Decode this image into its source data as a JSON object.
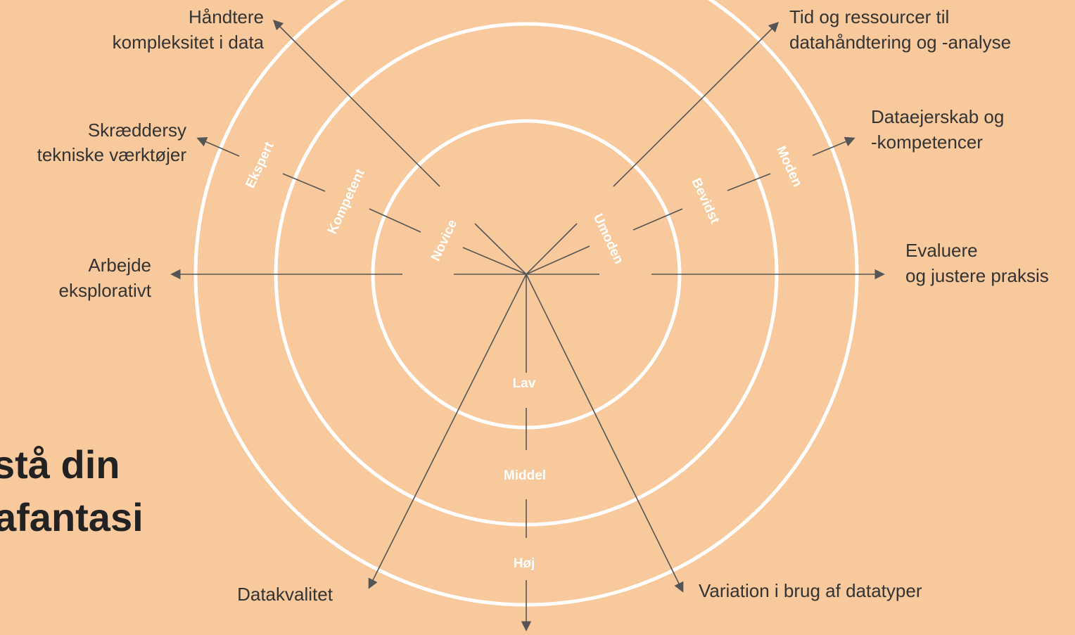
{
  "title": {
    "lines": [
      "stå din",
      "afantasi"
    ]
  },
  "axes": [
    {
      "lines": [
        "Håndtere",
        "kompleksitet i data"
      ]
    },
    {
      "lines": [
        "Skræddersy",
        "tekniske værktøjer"
      ]
    },
    {
      "lines": [
        "Arbejde",
        "eksplorativt"
      ]
    },
    {
      "lines": [
        "Tid og ressourcer til",
        "datahåndtering og -analyse"
      ]
    },
    {
      "lines": [
        "Dataejerskab og",
        "-kompetencer"
      ]
    },
    {
      "lines": [
        "Evaluere",
        "og justere praksis"
      ]
    },
    {
      "lines": [
        "Datakvalitet"
      ]
    },
    {
      "lines": [
        "Variation i brug af datatyper"
      ]
    }
  ],
  "rings": {
    "left": [
      "Novice",
      "Kompetent",
      "Ekspert"
    ],
    "right": [
      "Umoden",
      "Bevidst",
      "Moden"
    ]
  },
  "levels": [
    "Lav",
    "Middel",
    "Høj"
  ]
}
